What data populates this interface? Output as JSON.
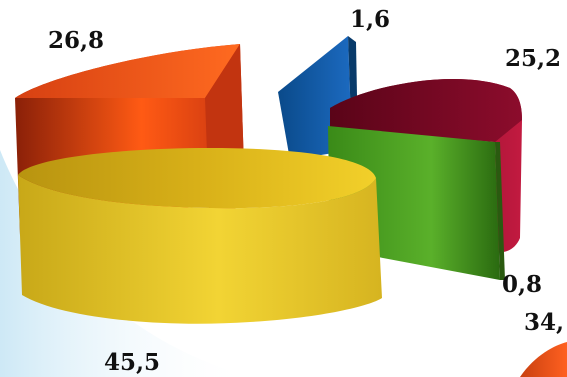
{
  "chart_data": {
    "type": "pie",
    "style": "exploded-3d",
    "labels": [
      "45,5",
      "26,8",
      "1,6",
      "25,2",
      "0,8",
      "34,"
    ],
    "values": [
      45.5,
      26.8,
      1.6,
      25.2,
      0.8,
      34
    ],
    "colors": [
      "#e0c020",
      "#e84a10",
      "#0a4a8a",
      "#8a0a2a",
      "#4aa020",
      "#d84810"
    ],
    "legend": "none",
    "grid": false
  }
}
